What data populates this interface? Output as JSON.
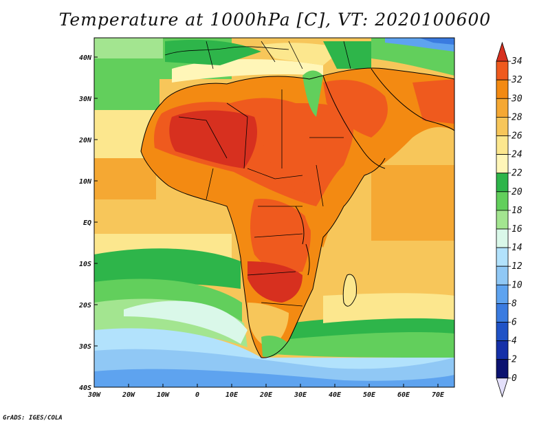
{
  "title": "Temperature at 1000hPa [C], VT: 2020100600",
  "credit": "GrADS: IGES/COLA",
  "map": {
    "lon_labels": [
      "30W",
      "20W",
      "10W",
      "0",
      "10E",
      "20E",
      "30E",
      "40E",
      "50E",
      "60E",
      "70E"
    ],
    "lat_labels": [
      "40N",
      "30N",
      "20N",
      "10N",
      "EQ",
      "10S",
      "20S",
      "30S",
      "40S"
    ],
    "lon_range": [
      -30,
      75
    ],
    "lat_range": [
      -40,
      44
    ]
  },
  "colorbar": {
    "levels": [
      "34",
      "32",
      "30",
      "28",
      "26",
      "24",
      "22",
      "20",
      "18",
      "16",
      "14",
      "12",
      "10",
      "8",
      "6",
      "4",
      "2",
      "0"
    ],
    "colors": [
      "#d7301f",
      "#ef5a1e",
      "#f38a12",
      "#f5a833",
      "#f7c65a",
      "#fce78e",
      "#fff6b8",
      "#2eb54a",
      "#62cf5c",
      "#a3e590",
      "#daf8e9",
      "#b2e2fc",
      "#90c8f5",
      "#5ea3ef",
      "#3a7be0",
      "#1f52c6",
      "#1530a8",
      "#0b1270",
      "#e4e0fb"
    ]
  }
}
